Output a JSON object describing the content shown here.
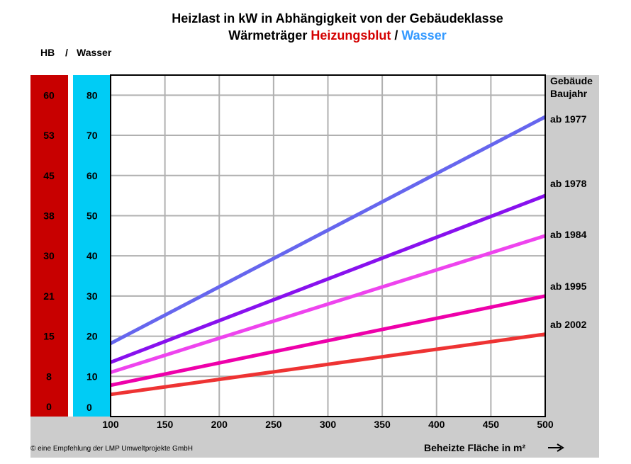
{
  "header": {
    "title_line1": "Heizlast in kW in Abhängigkeit von der Gebäudeklasse",
    "title_line2_prefix": "Wärmeträger ",
    "title_line2_hb": "Heizungsblut",
    "title_line2_sep": " / ",
    "title_line2_water": "Wasser",
    "col_hb": "HB",
    "col_sep": "/",
    "col_water": "Wasser"
  },
  "legend_header": [
    "Gebäude",
    "Baujahr"
  ],
  "footer": {
    "credit": "© eine Empfehlung der LMP Umweltprojekte GmbH",
    "xaxis_title": "Beheizte Fläche in m²"
  },
  "colors": {
    "hb_red": "#d40000",
    "water_blue": "#3399ff",
    "hb_bar": "#c80000",
    "water_bar": "#00ccf5",
    "panel_gray": "#cccccc"
  },
  "chart_data": {
    "type": "line",
    "xlabel": "Beheizte Fläche in m²",
    "ylabel": "Wasser",
    "xlim": [
      100,
      500
    ],
    "ylim": [
      0,
      85
    ],
    "x_ticks": [
      "100",
      "150",
      "200",
      "250",
      "300",
      "350",
      "400",
      "450",
      "500"
    ],
    "y_ticks_water": [
      "0",
      "10",
      "20",
      "30",
      "40",
      "50",
      "60",
      "70",
      "80"
    ],
    "y_ticks_hb": [
      "0",
      "8",
      "15",
      "21",
      "30",
      "38",
      "45",
      "53",
      "60"
    ],
    "grid": true,
    "legend_title": "Gebäude Baujahr",
    "legend_placement": "right",
    "series": [
      {
        "name": "ab 1977",
        "color": "#6666ee",
        "x": [
          100,
          500
        ],
        "y": [
          18.2,
          74.6
        ]
      },
      {
        "name": "ab 1978",
        "color": "#8811ee",
        "x": [
          100,
          500
        ],
        "y": [
          13.5,
          55.0
        ]
      },
      {
        "name": "ab 1984",
        "color": "#ee44ee",
        "x": [
          100,
          500
        ],
        "y": [
          11.0,
          45.0
        ]
      },
      {
        "name": "ab 1995",
        "color": "#ee00aa",
        "x": [
          100,
          500
        ],
        "y": [
          7.8,
          30.0
        ]
      },
      {
        "name": "ab 2002",
        "color": "#ee3333",
        "x": [
          100,
          500
        ],
        "y": [
          5.5,
          20.5
        ]
      }
    ]
  }
}
